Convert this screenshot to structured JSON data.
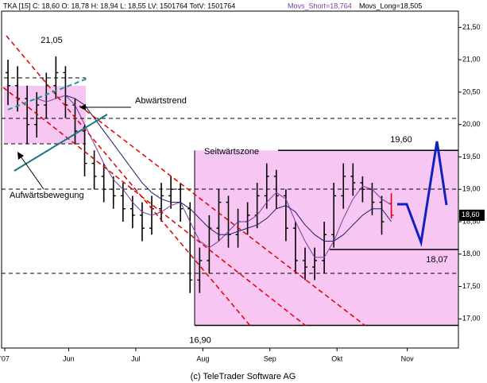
{
  "chart_data": {
    "type": "ohlc",
    "header": {
      "text": "TKA [15] C: 18,60 O: 18,78 H: 18,94 L: 18,55 LV: 1501764 TotV: 1501764",
      "short": "Movs_Short=18,764",
      "long": "Movs_Long=18,505"
    },
    "footer": "(c) TeleTrader Software AG",
    "x": [
      2,
      5,
      8,
      11,
      14,
      17,
      20,
      23,
      26,
      29,
      32,
      35,
      38,
      41,
      44,
      47,
      50,
      53,
      56,
      59,
      62,
      65,
      68,
      71,
      74,
      77,
      80,
      83,
      86,
      89,
      92,
      95,
      98,
      101,
      104,
      107,
      110,
      113,
      116,
      119,
      122
    ],
    "open": [
      20.8,
      20.6,
      20.4,
      20.0,
      20.3,
      20.6,
      20.8,
      20.3,
      19.9,
      19.4,
      19.2,
      19.0,
      18.9,
      18.7,
      18.6,
      18.4,
      18.7,
      18.9,
      19.0,
      18.7,
      17.6,
      17.9,
      18.4,
      18.8,
      18.3,
      18.5,
      18.6,
      18.9,
      19.2,
      18.9,
      18.4,
      17.9,
      17.8,
      17.9,
      18.3,
      18.9,
      19.2,
      19.1,
      19.0,
      18.8,
      18.78
    ],
    "high": [
      21.0,
      20.9,
      20.6,
      20.5,
      20.8,
      21.05,
      20.9,
      20.4,
      20.0,
      19.6,
      19.4,
      19.2,
      19.1,
      18.9,
      18.8,
      18.9,
      19.1,
      19.2,
      19.1,
      18.8,
      18.1,
      18.6,
      19.0,
      18.9,
      18.7,
      18.8,
      19.1,
      19.4,
      19.3,
      19.0,
      18.5,
      18.1,
      18.1,
      18.5,
      19.1,
      19.4,
      19.4,
      19.2,
      19.1,
      18.9,
      18.94
    ],
    "low": [
      20.3,
      20.2,
      19.7,
      19.8,
      20.1,
      20.4,
      20.1,
      19.7,
      19.2,
      19.0,
      18.8,
      18.7,
      18.5,
      18.4,
      18.2,
      18.3,
      18.5,
      18.7,
      18.5,
      17.4,
      17.4,
      17.7,
      18.2,
      18.1,
      18.1,
      18.3,
      18.4,
      18.7,
      18.7,
      18.2,
      17.7,
      17.6,
      17.6,
      17.7,
      18.1,
      18.7,
      18.9,
      18.8,
      18.6,
      18.3,
      18.55
    ],
    "close": [
      20.6,
      20.4,
      20.0,
      20.3,
      20.6,
      20.8,
      20.3,
      19.9,
      19.4,
      19.2,
      19.0,
      18.9,
      18.7,
      18.6,
      18.4,
      18.7,
      18.9,
      19.0,
      18.7,
      17.6,
      17.9,
      18.4,
      18.8,
      18.3,
      18.5,
      18.6,
      18.9,
      19.2,
      18.9,
      18.4,
      17.9,
      17.8,
      17.9,
      18.3,
      18.9,
      19.2,
      19.1,
      19.0,
      18.8,
      18.5,
      18.6
    ],
    "color": "#000000",
    "last_bar_color": "#e00000",
    "series": [
      {
        "color": "#7a3fa0",
        "values": [
          null,
          null,
          null,
          20.4,
          20.35,
          20.4,
          20.45,
          20.3,
          20.0,
          19.7,
          19.4,
          19.15,
          19.0,
          18.8,
          18.65,
          18.6,
          18.65,
          18.75,
          18.8,
          18.5,
          18.2,
          18.1,
          18.2,
          18.35,
          18.5,
          18.5,
          18.6,
          18.8,
          18.95,
          18.85,
          18.5,
          18.2,
          17.95,
          17.95,
          18.2,
          18.55,
          18.85,
          19.05,
          19.0,
          18.85,
          18.76
        ]
      },
      {
        "color": "#1c1c70",
        "values": [
          null,
          null,
          null,
          null,
          null,
          null,
          20.45,
          20.4,
          20.3,
          20.1,
          19.9,
          19.7,
          19.5,
          19.3,
          19.1,
          18.95,
          18.85,
          18.8,
          18.8,
          18.7,
          18.55,
          18.4,
          18.3,
          18.3,
          18.35,
          18.4,
          18.45,
          18.55,
          18.7,
          18.75,
          18.65,
          18.45,
          18.3,
          18.2,
          18.2,
          18.3,
          18.45,
          18.6,
          18.7,
          18.7,
          18.5
        ]
      }
    ],
    "xlim": [
      0,
      143
    ],
    "xticks": [
      {
        "value": 1,
        "label": "'07"
      },
      {
        "value": 21,
        "label": "Jun"
      },
      {
        "value": 42,
        "label": "Jul"
      },
      {
        "value": 63,
        "label": "Aug"
      },
      {
        "value": 84,
        "label": "Sep"
      },
      {
        "value": 105,
        "label": "Okt"
      },
      {
        "value": 127,
        "label": "Nov"
      }
    ],
    "ylim": [
      16.55,
      21.75
    ],
    "yticks": [
      {
        "value": 17,
        "label": "17,00"
      },
      {
        "value": 17.5,
        "label": "17,50"
      },
      {
        "value": 18,
        "label": "18,00"
      },
      {
        "value": 18.5,
        "label": "18,50"
      },
      {
        "value": 19,
        "label": "19,00"
      },
      {
        "value": 19.5,
        "label": "19,50"
      },
      {
        "value": 20,
        "label": "20,00"
      },
      {
        "value": 20.5,
        "label": "20,50"
      },
      {
        "value": 21,
        "label": "21,00"
      },
      {
        "value": 21.5,
        "label": "21,50"
      }
    ],
    "last_price": {
      "value": 18.6,
      "label": "18,60"
    },
    "levels": [
      {
        "value": 21.05,
        "label": "21,05"
      },
      {
        "value": 19.6,
        "label": "19,60"
      },
      {
        "value": 18.07,
        "label": "18,07"
      },
      {
        "value": 16.9,
        "label": "16,90"
      }
    ],
    "annotations": [
      "Abwärtstrend",
      "Aufwärtsbewegung",
      "Seitwärtszone"
    ]
  }
}
